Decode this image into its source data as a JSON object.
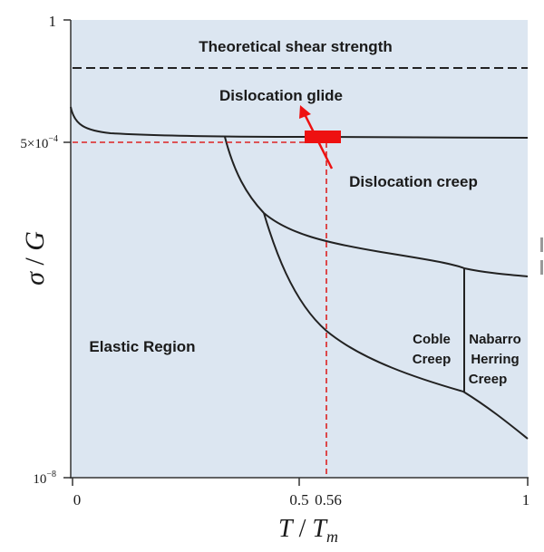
{
  "colors": {
    "plot_background": "#dce6f1",
    "curve": "#222222",
    "highlight": "#ee1111",
    "guide": "#dd2222"
  },
  "y_axis": {
    "title_main": "σ",
    "title_sep": " / ",
    "title_var": "G",
    "tick_top": "1",
    "tick_mid_base": "5×10",
    "tick_mid_exp": "−4",
    "tick_bottom_base": "10",
    "tick_bottom_exp": "−8"
  },
  "x_axis": {
    "title_var": "T",
    "title_sep": " / ",
    "title_sub_var": "T",
    "title_sub": "m",
    "tick_0": "0",
    "tick_05": "0.5",
    "tick_056": "0.56",
    "tick_1": "1"
  },
  "regions": {
    "theoretical_shear": "Theoretical shear strength",
    "dislocation_glide": "Dislocation glide",
    "dislocation_creep": "Dislocation creep",
    "elastic": "Elastic Region",
    "coble_line1": "Coble",
    "coble_line2": "Creep",
    "nabarro_line1": "Nabarro",
    "nabarro_line2": "Herring",
    "nabarro_line3": "Creep"
  },
  "operating_point": {
    "T_over_Tm": 0.56,
    "sigma_over_G": "5×10^-4"
  }
}
